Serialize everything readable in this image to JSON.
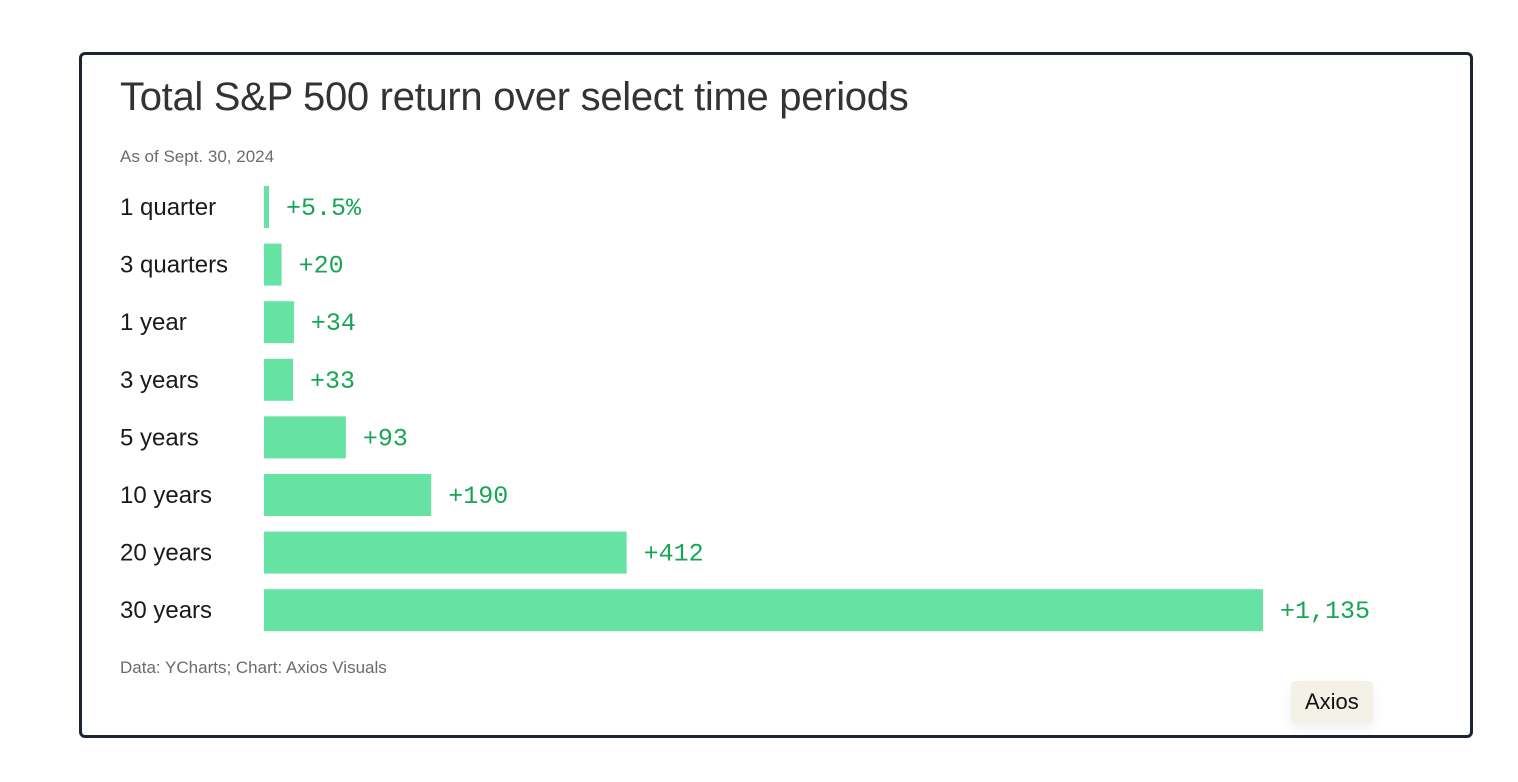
{
  "brand": {
    "badge_label": "Axios",
    "bar_color": "#66e2a3",
    "value_color": "#17a654",
    "border_color": "#1c2533"
  },
  "chart_data": {
    "type": "bar",
    "orientation": "horizontal",
    "title": "Total S&P 500 return over select time periods",
    "subtitle": "As of Sept. 30, 2024",
    "source": "Data: YCharts; Chart: Axios Visuals",
    "categories": [
      "1 quarter",
      "3 quarters",
      "1 year",
      "3 years",
      "5 years",
      "10 years",
      "20 years",
      "30 years"
    ],
    "values": [
      5.5,
      20,
      34,
      33,
      93,
      190,
      412,
      1135
    ],
    "value_labels": [
      "+5.5%",
      "+20",
      "+34",
      "+33",
      "+93",
      "+190",
      "+412",
      "+1,135"
    ],
    "xlim": [
      0,
      1135
    ],
    "grid": false,
    "legend": "none"
  }
}
